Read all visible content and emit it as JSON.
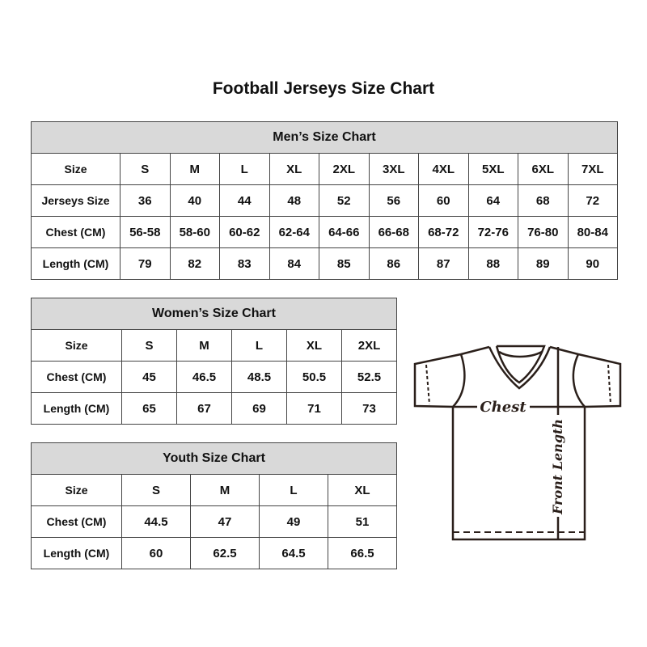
{
  "title": "Football Jerseys Size Chart",
  "tables": [
    {
      "id": "men",
      "name": "Men’s Size Chart",
      "rows": [
        [
          "Size",
          "S",
          "M",
          "L",
          "XL",
          "2XL",
          "3XL",
          "4XL",
          "5XL",
          "6XL",
          "7XL"
        ],
        [
          "Jerseys Size",
          "36",
          "40",
          "44",
          "48",
          "52",
          "56",
          "60",
          "64",
          "68",
          "72"
        ],
        [
          "Chest (CM)",
          "56-58",
          "58-60",
          "60-62",
          "62-64",
          "64-66",
          "66-68",
          "68-72",
          "72-76",
          "76-80",
          "80-84"
        ],
        [
          "Length (CM)",
          "79",
          "82",
          "83",
          "84",
          "85",
          "86",
          "87",
          "88",
          "89",
          "90"
        ]
      ]
    },
    {
      "id": "women",
      "name": "Women’s Size Chart",
      "rows": [
        [
          "Size",
          "S",
          "M",
          "L",
          "XL",
          "2XL"
        ],
        [
          "Chest (CM)",
          "45",
          "46.5",
          "48.5",
          "50.5",
          "52.5"
        ],
        [
          "Length (CM)",
          "65",
          "67",
          "69",
          "71",
          "73"
        ]
      ]
    },
    {
      "id": "youth",
      "name": "Youth Size Chart",
      "rows": [
        [
          "Size",
          "S",
          "M",
          "L",
          "XL"
        ],
        [
          "Chest (CM)",
          "44.5",
          "47",
          "49",
          "51"
        ],
        [
          "Length (CM)",
          "60",
          "62.5",
          "64.5",
          "66.5"
        ]
      ]
    }
  ],
  "diagram": {
    "chest_label": "Chest",
    "length_label": "Front Length"
  },
  "colors": {
    "header_bg": "#d9d9d9",
    "border": "#444444",
    "line": "#2a1f1a"
  }
}
